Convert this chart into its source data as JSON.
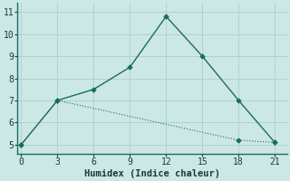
{
  "xlabel": "Humidex (Indice chaleur)",
  "ylabel": "",
  "background_color": "#cce8e4",
  "grid_color": "#aacfcc",
  "line_color": "#1a6b6a",
  "line1_x": [
    0,
    3,
    6,
    9,
    12,
    15,
    18,
    21
  ],
  "line1_y": [
    5.0,
    7.0,
    7.5,
    8.5,
    10.8,
    9.0,
    7.0,
    5.1
  ],
  "line2_x": [
    0,
    3,
    18,
    21
  ],
  "line2_y": [
    5.0,
    7.0,
    5.2,
    5.1
  ],
  "xlim": [
    -0.3,
    22.0
  ],
  "ylim": [
    4.6,
    11.4
  ],
  "xticks": [
    0,
    3,
    6,
    9,
    12,
    15,
    18,
    21
  ],
  "yticks": [
    5,
    6,
    7,
    8,
    9,
    10,
    11
  ],
  "fontsize_axis_label": 7.5,
  "fontsize_ticks": 7,
  "linewidth1": 1.0,
  "linewidth2": 0.8,
  "markersize": 2.8
}
